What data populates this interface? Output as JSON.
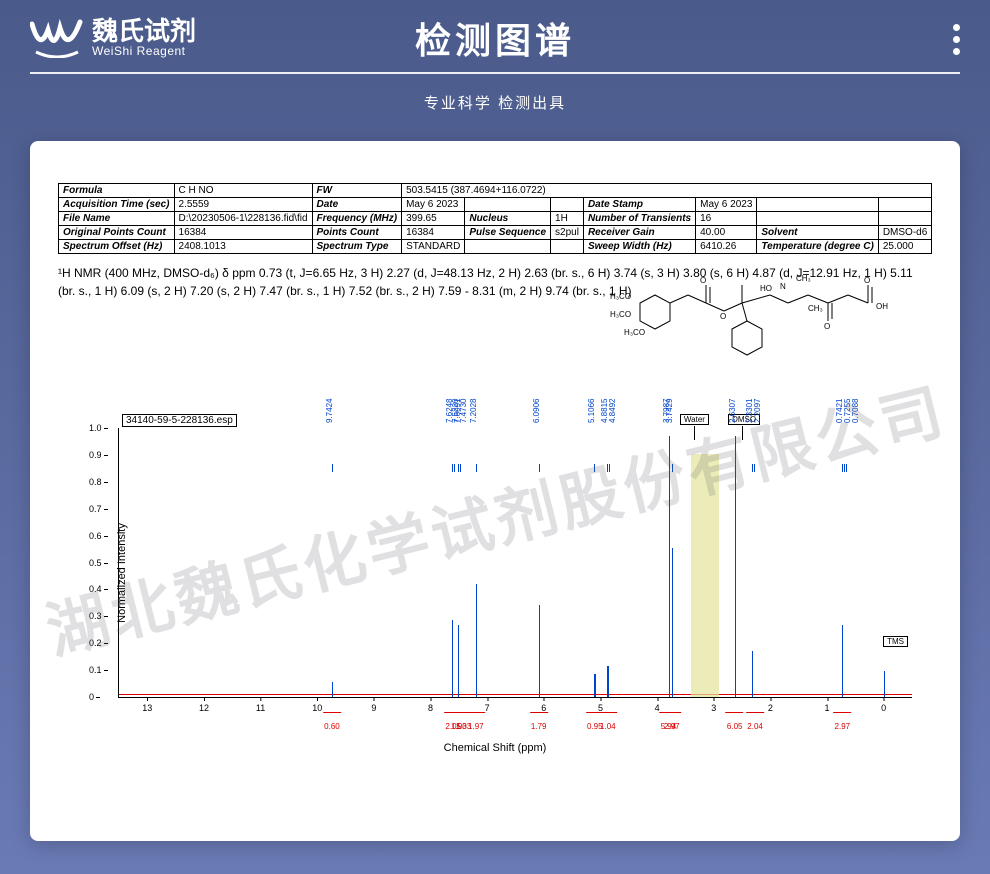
{
  "header": {
    "logo_cn": "魏氏试剂",
    "logo_en": "WeiShi Reagent",
    "title": "检测图谱",
    "subtitle": "专业科学 检测出具"
  },
  "watermark": "湖北魏氏化学试剂股份有限公司",
  "meta": {
    "formula_label": "Formula",
    "formula_value": "C H NO",
    "fw_label": "FW",
    "fw_value": "503.5415 (387.4694+116.0722)",
    "rows": [
      [
        {
          "l": "Acquisition Time (sec)",
          "v": "2.5559"
        },
        {
          "l": "Date",
          "v": "May 6 2023"
        },
        {
          "l": "",
          "v": ""
        },
        {
          "l": "Date Stamp",
          "v": "May 6 2023"
        },
        {
          "l": "",
          "v": ""
        }
      ],
      [
        {
          "l": "File Name",
          "v": "D:\\20230506-1\\228136.fid\\fid"
        },
        {
          "l": "Frequency (MHz)",
          "v": "399.65"
        },
        {
          "l": "Nucleus",
          "v": "1H"
        },
        {
          "l": "Number of Transients",
          "v": "16"
        },
        {
          "l": "",
          "v": ""
        }
      ],
      [
        {
          "l": "Original Points Count",
          "v": "16384"
        },
        {
          "l": "Points Count",
          "v": "16384"
        },
        {
          "l": "Pulse Sequence",
          "v": "s2pul"
        },
        {
          "l": "Receiver Gain",
          "v": "40.00"
        },
        {
          "l": "Solvent",
          "v": "DMSO-d6"
        }
      ],
      [
        {
          "l": "Spectrum Offset (Hz)",
          "v": "2408.1013"
        },
        {
          "l": "Spectrum Type",
          "v": "STANDARD"
        },
        {
          "l": "",
          "v": ""
        },
        {
          "l": "Sweep Width (Hz)",
          "v": "6410.26"
        },
        {
          "l": "Temperature (degree C)",
          "v": "25.000"
        }
      ]
    ]
  },
  "nmr_text": "¹H NMR (400 MHz, DMSO-d₆) δ ppm 0.73 (t, J=6.65 Hz, 3 H) 2.27 (d, J=48.13 Hz, 2 H) 2.63 (br. s., 6 H) 3.74 (s, 3 H) 3.80 (s, 6 H) 4.87 (d, J=12.91 Hz, 1 H) 5.11 (br. s., 1 H) 6.09 (s, 2 H) 7.20 (s, 2 H) 7.47 (br. s., 1 H) 7.52 (br. s., 2 H) 7.59 - 8.31 (m, 2 H) 9.74 (br. s., 1 H)",
  "chart": {
    "sample_name": "34140-59-5-228136.esp",
    "ylabel": "Normalized Intensity",
    "xlabel": "Chemical Shift (ppm)",
    "yticks": [
      "0",
      "0.1",
      "0.2",
      "0.3",
      "0.4",
      "0.5",
      "0.6",
      "0.7",
      "0.8",
      "0.9",
      "1.0"
    ],
    "xticks": [
      "13",
      "12",
      "11",
      "10",
      "9",
      "8",
      "7",
      "6",
      "5",
      "4",
      "3",
      "2",
      "1",
      "0"
    ],
    "x_min": -0.5,
    "x_max": 13.5,
    "y_min": 0,
    "y_max": 1.05,
    "solvent_labels": [
      {
        "text": "Water",
        "ppm": 3.35
      },
      {
        "text": "DMSO",
        "ppm": 2.5
      }
    ],
    "tms_label": "TMS",
    "highlight": {
      "ppm_from": 2.9,
      "ppm_to": 3.4,
      "height": 0.95
    },
    "peaks": [
      {
        "ppm": 9.7424,
        "h": 0.06,
        "labels": [
          "9.7424"
        ]
      },
      {
        "ppm": 7.6248,
        "h": 0.3,
        "labels": [
          "7.6248",
          "7.6091"
        ]
      },
      {
        "ppm": 7.522,
        "h": 0.28,
        "labels": [
          "7.5220",
          "7.4730"
        ]
      },
      {
        "ppm": 7.2028,
        "h": 0.44,
        "labels": [
          "7.2028"
        ]
      },
      {
        "ppm": 6.0906,
        "h": 0.36,
        "labels": [
          "6.0906"
        ]
      },
      {
        "ppm": 5.1066,
        "h": 0.09,
        "labels": [
          "5.1066"
        ]
      },
      {
        "ppm": 4.8815,
        "h": 0.12,
        "labels": [
          "4.8815",
          "4.8492"
        ]
      },
      {
        "ppm": 3.7987,
        "h": 1.02,
        "labels": [
          "3.7987"
        ]
      },
      {
        "ppm": 3.7429,
        "h": 0.58,
        "labels": [
          "3.7429"
        ]
      },
      {
        "ppm": 2.6307,
        "h": 1.02,
        "labels": [
          "2.6307"
        ]
      },
      {
        "ppm": 2.3301,
        "h": 0.18,
        "labels": [
          "2.3301",
          "2.2097"
        ]
      },
      {
        "ppm": 0.7421,
        "h": 0.28,
        "labels": [
          "0.7421",
          "0.7255",
          "0.7088"
        ]
      },
      {
        "ppm": 0.0,
        "h": 0.1,
        "labels": []
      }
    ],
    "integrals": [
      {
        "ppm": 9.74,
        "v": "0.60"
      },
      {
        "ppm": 7.6,
        "v": "2.05"
      },
      {
        "ppm": 7.5,
        "v": "1.93"
      },
      {
        "ppm": 7.42,
        "v": "1.03"
      },
      {
        "ppm": 7.2,
        "v": "1.97"
      },
      {
        "ppm": 6.09,
        "v": "1.79"
      },
      {
        "ppm": 5.1,
        "v": "0.95"
      },
      {
        "ppm": 4.87,
        "v": "1.04"
      },
      {
        "ppm": 3.8,
        "v": "5.94"
      },
      {
        "ppm": 3.74,
        "v": "2.97"
      },
      {
        "ppm": 2.63,
        "v": "6.05"
      },
      {
        "ppm": 2.27,
        "v": "2.04"
      },
      {
        "ppm": 0.73,
        "v": "2.97"
      }
    ]
  },
  "colors": {
    "bg_top": "#4a5a8a",
    "bg_bottom": "#6a7ab5",
    "peak": "#0044cc",
    "integral": "#d00000",
    "highlight": "#e4e49a",
    "panel": "#ffffff"
  }
}
